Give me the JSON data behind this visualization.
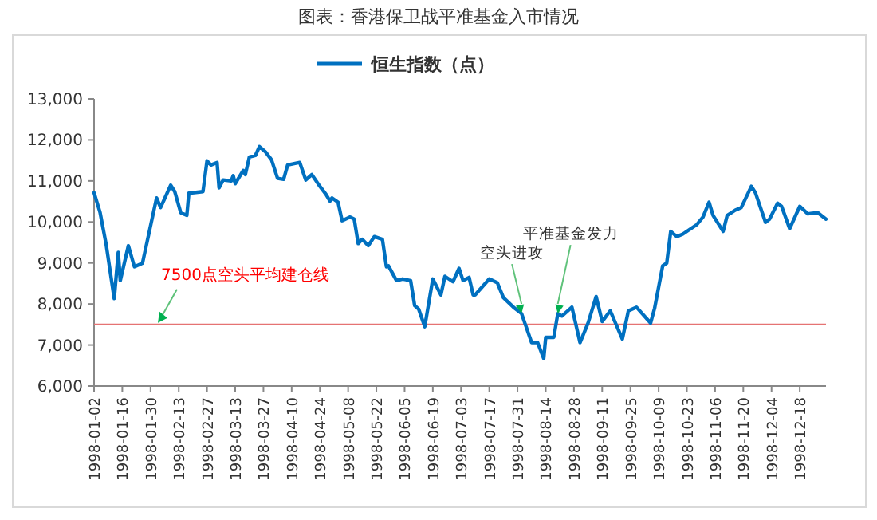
{
  "chart_data": {
    "type": "line",
    "title": "图表：香港保卫战平准基金入市情况",
    "legend": "top",
    "grid": false,
    "marker": "none",
    "line_style": "solid",
    "xlim": [
      "1998-01-02",
      "1998-12-31"
    ],
    "xticks": [
      "1998-01-02",
      "1998-01-16",
      "1998-01-30",
      "1998-02-13",
      "1998-02-27",
      "1998-03-13",
      "1998-03-27",
      "1998-04-10",
      "1998-04-24",
      "1998-05-08",
      "1998-05-22",
      "1998-06-05",
      "1998-06-19",
      "1998-07-03",
      "1998-07-17",
      "1998-07-31",
      "1998-08-14",
      "1998-08-28",
      "1998-09-11",
      "1998-09-25",
      "1998-10-09",
      "1998-10-23",
      "1998-11-06",
      "1998-11-20",
      "1998-12-04",
      "1998-12-18"
    ],
    "ylim": [
      6000,
      13000
    ],
    "yticks": [
      {
        "value": 6000,
        "label": "6,000"
      },
      {
        "value": 7000,
        "label": "7,000"
      },
      {
        "value": 8000,
        "label": "8,000"
      },
      {
        "value": 9000,
        "label": "9,000"
      },
      {
        "value": 10000,
        "label": "10,000"
      },
      {
        "value": 11000,
        "label": "11,000"
      },
      {
        "value": 12000,
        "label": "12,000"
      },
      {
        "value": 13000,
        "label": "13,000"
      }
    ],
    "ref_lines": [
      {
        "axis": "y",
        "value": 7500,
        "label": "7500点空头平均建仓线",
        "color": "#e57373",
        "line_style": "solid"
      }
    ],
    "annotations": [
      {
        "text": "空头进攻",
        "x": "1998-08-02",
        "y": 7767
      },
      {
        "text": "平准基金发力",
        "x": "1998-08-20",
        "y": 7767
      }
    ],
    "series": [
      {
        "name": "恒生指数（点）",
        "color": "#0070c0",
        "x": [
          "1998-01-02",
          "1998-01-05",
          "1998-01-08",
          "1998-01-12",
          "1998-01-14",
          "1998-01-15",
          "1998-01-19",
          "1998-01-22",
          "1998-01-26",
          "1998-02-02",
          "1998-02-04",
          "1998-02-09",
          "1998-02-11",
          "1998-02-14",
          "1998-02-17",
          "1998-02-18",
          "1998-02-25",
          "1998-02-27",
          "1998-03-01",
          "1998-03-04",
          "1998-03-05",
          "1998-03-07",
          "1998-03-11",
          "1998-03-12",
          "1998-03-13",
          "1998-03-17",
          "1998-03-18",
          "1998-03-20",
          "1998-03-23",
          "1998-03-25",
          "1998-03-28",
          "1998-03-31",
          "1998-04-03",
          "1998-04-06",
          "1998-04-08",
          "1998-04-14",
          "1998-04-17",
          "1998-04-20",
          "1998-04-24",
          "1998-04-27",
          "1998-04-29",
          "1998-04-30",
          "1998-05-03",
          "1998-05-05",
          "1998-05-09",
          "1998-05-11",
          "1998-05-13",
          "1998-05-15",
          "1998-05-18",
          "1998-05-21",
          "1998-05-25",
          "1998-05-27",
          "1998-05-28",
          "1998-06-01",
          "1998-06-04",
          "1998-06-08",
          "1998-06-10",
          "1998-06-12",
          "1998-06-15",
          "1998-06-19",
          "1998-06-23",
          "1998-06-25",
          "1998-06-29",
          "1998-07-02",
          "1998-07-04",
          "1998-07-07",
          "1998-07-09",
          "1998-07-10",
          "1998-07-17",
          "1998-07-21",
          "1998-07-24",
          "1998-07-29",
          "1998-08-02",
          "1998-08-07",
          "1998-08-10",
          "1998-08-13",
          "1998-08-14",
          "1998-08-18",
          "1998-08-20",
          "1998-08-22",
          "1998-08-27",
          "1998-08-31",
          "1998-09-04",
          "1998-09-08",
          "1998-09-11",
          "1998-09-15",
          "1998-09-21",
          "1998-09-24",
          "1998-09-28",
          "1998-10-05",
          "1998-10-07",
          "1998-10-11",
          "1998-10-13",
          "1998-10-15",
          "1998-10-18",
          "1998-10-21",
          "1998-10-28",
          "1998-10-31",
          "1998-11-03",
          "1998-11-05",
          "1998-11-10",
          "1998-11-12",
          "1998-11-16",
          "1998-11-19",
          "1998-11-24",
          "1998-11-26",
          "1998-12-01",
          "1998-12-03",
          "1998-12-07",
          "1998-12-09",
          "1998-12-13",
          "1998-12-18",
          "1998-12-22",
          "1998-12-27",
          "1998-12-31"
        ],
        "values": [
          10713,
          10225,
          9450,
          8132,
          9256,
          8570,
          9422,
          8907,
          8996,
          10585,
          10353,
          10895,
          10740,
          10225,
          10159,
          10701,
          10740,
          11488,
          11388,
          11450,
          10830,
          11023,
          11000,
          11128,
          10934,
          11256,
          11155,
          11581,
          11620,
          11837,
          11709,
          11516,
          11062,
          11039,
          11388,
          11450,
          11023,
          11155,
          10868,
          10674,
          10508,
          10585,
          10481,
          10031,
          10120,
          10070,
          9473,
          9577,
          9422,
          9643,
          9577,
          8907,
          8930,
          8570,
          8609,
          8570,
          7961,
          7872,
          7446,
          8609,
          8221,
          8674,
          8543,
          8868,
          8570,
          8647,
          8221,
          8221,
          8609,
          8519,
          8155,
          7922,
          7767,
          7058,
          7058,
          6670,
          7186,
          7186,
          7767,
          7705,
          7922,
          7058,
          7535,
          8182,
          7574,
          7833,
          7147,
          7833,
          7922,
          7535,
          7896,
          8930,
          8996,
          9771,
          9643,
          9705,
          9938,
          10120,
          10481,
          10159,
          9771,
          10159,
          10287,
          10353,
          10868,
          10713,
          9992,
          10070,
          10457,
          10380,
          9837,
          10380,
          10198,
          10225,
          10070
        ]
      }
    ]
  }
}
